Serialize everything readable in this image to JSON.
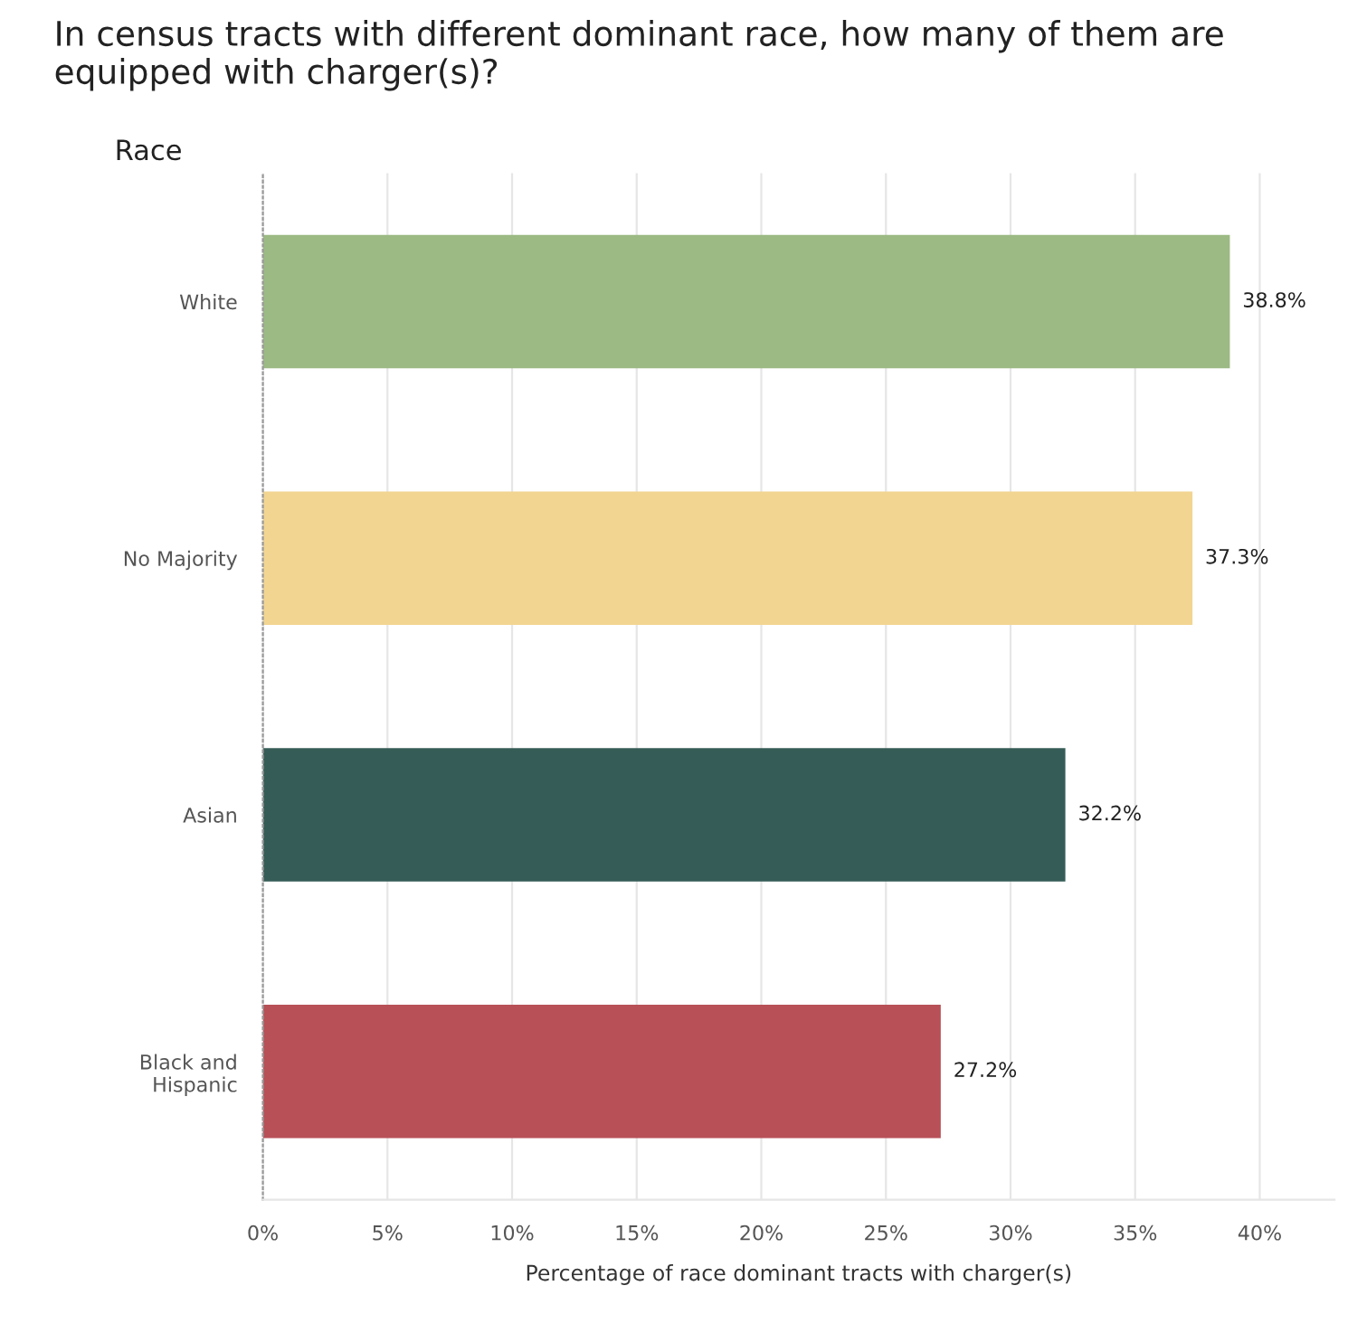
{
  "chart_data": {
    "type": "bar",
    "orientation": "horizontal",
    "title": "In census tracts with different dominant race, how many of them are equipped with charger(s)?",
    "ylabel": "Race",
    "xlabel": "Percentage of race dominant tracts with charger(s)",
    "categories": [
      "White",
      "No Majority",
      "Asian",
      "Black and\nHispanic"
    ],
    "values": [
      38.8,
      37.3,
      32.2,
      27.2
    ],
    "colors": [
      "#9cba83",
      "#f2d591",
      "#365c57",
      "#b75057"
    ],
    "value_labels": [
      "38.8%",
      "37.3%",
      "32.2%",
      "27.2%"
    ],
    "xlim": [
      0,
      43
    ],
    "xticks": [
      {
        "value": 0,
        "label": "0%"
      },
      {
        "value": 5,
        "label": "5%"
      },
      {
        "value": 10,
        "label": "10%"
      },
      {
        "value": 15,
        "label": "15%"
      },
      {
        "value": 20,
        "label": "20%"
      },
      {
        "value": 25,
        "label": "25%"
      },
      {
        "value": 30,
        "label": "30%"
      },
      {
        "value": 35,
        "label": "35%"
      },
      {
        "value": 40,
        "label": "40%"
      }
    ],
    "grid": "x"
  }
}
